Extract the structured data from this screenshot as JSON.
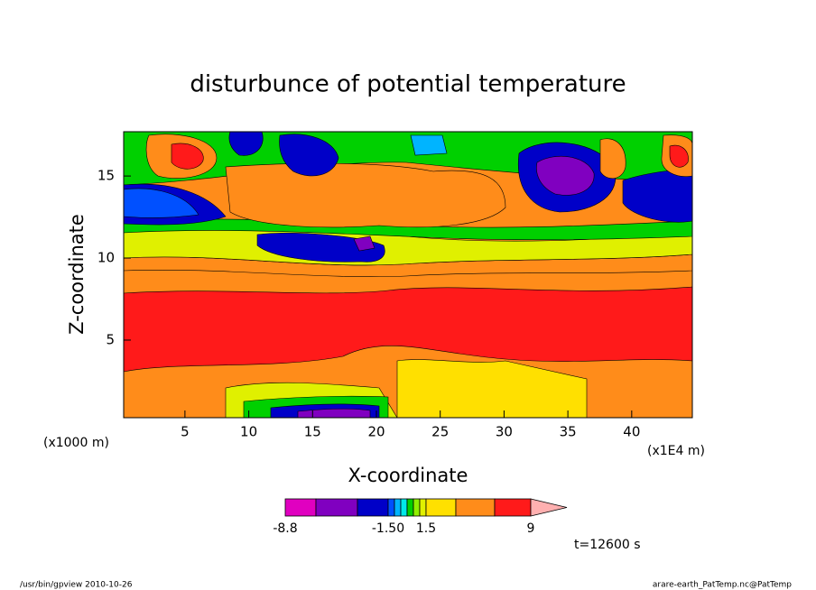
{
  "chart_data": {
    "type": "contour",
    "title": "disturbunce of potential temperature",
    "xlabel": "X-coordinate",
    "ylabel": "Z-coordinate",
    "x_unit_left": "(x1000 m)",
    "x_unit_right": "(x1E4 m)",
    "xlim": [
      0.2,
      44.75
    ],
    "xticks": [
      5,
      10,
      15,
      20,
      25,
      30,
      35,
      40
    ],
    "ylim": [
      0.27,
      17.7
    ],
    "yticks": [
      5,
      10,
      15
    ],
    "colorbar": {
      "levels": [
        -8.8,
        -6,
        -3,
        -1.5,
        -1,
        -0.5,
        0,
        0.5,
        1,
        1.5,
        3,
        6,
        9
      ],
      "colors": [
        "#e000c0",
        "#8000c0",
        "#0000c8",
        "#0050ff",
        "#00b4ff",
        "#00e8e8",
        "#00d000",
        "#90f000",
        "#e0f000",
        "#ffe000",
        "#ff8c1a",
        "#ff1a1a",
        "#ff7070"
      ],
      "extend_color": "#ffb0b0",
      "ticks": [
        -8.8,
        {
          "value": -1.5,
          "label": "-1.50"
        },
        1.5,
        9
      ]
    },
    "time_label": "t=12600 s",
    "footer_left": "/usr/bin/gpview  2010-10-26",
    "footer_right": "arare-earth_PatTemp.nc@PatTemp"
  }
}
